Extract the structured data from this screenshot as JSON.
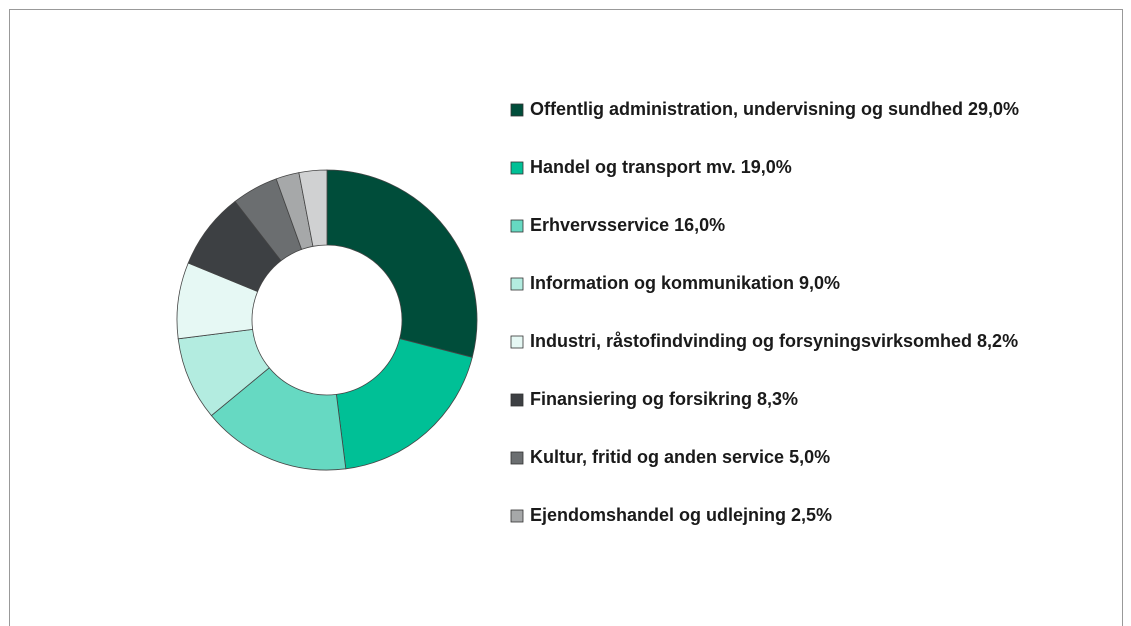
{
  "chart_data": {
    "type": "donut",
    "categories": [
      "Offentlig administration, undervisning og sundhed",
      "Handel og transport mv.",
      "Erhvervsservice",
      "Information og kommunikation",
      "Industri, råstofindvinding og forsyningsvirksomhed",
      "Finansiering og forsikring",
      "Kultur, fritid og anden service",
      "Ejendomshandel og udlejning",
      null
    ],
    "values": [
      29.0,
      19.0,
      16.0,
      9.0,
      8.2,
      8.3,
      5.0,
      2.5,
      3.0
    ],
    "value_labels": [
      "29,0%",
      "19,0%",
      "16,0%",
      "9,0%",
      "8,2%",
      "8,3%",
      "5,0%",
      "2,5%",
      null
    ],
    "colors": [
      "#004d3a",
      "#00c096",
      "#66d9c2",
      "#b3ece0",
      "#e6f8f4",
      "#3d4043",
      "#6b6e70",
      "#a6a8a9",
      "#d0d1d2"
    ],
    "legend": "right"
  }
}
